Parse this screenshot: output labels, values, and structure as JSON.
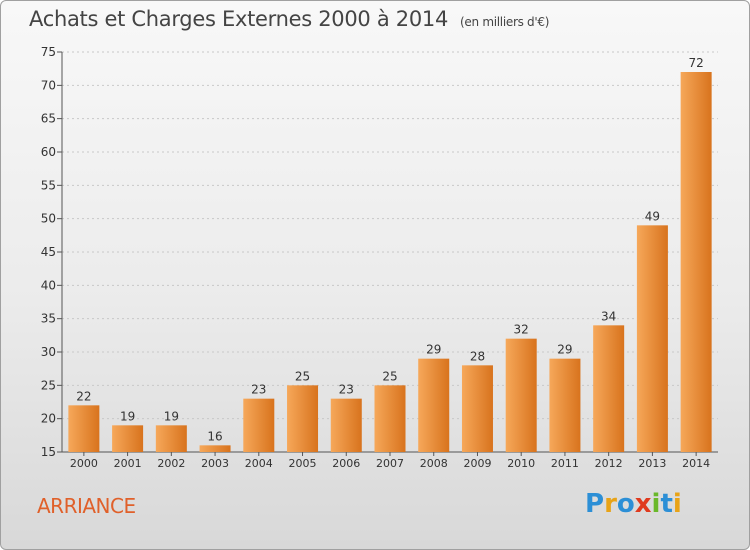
{
  "title": "Achats et Charges Externes 2000 à 2014",
  "subtitle": "(en milliers d'€)",
  "commune": "ARRIANCE",
  "logo": {
    "text": "Proxiti",
    "letters": [
      {
        "char": "P",
        "color": "#2c8fd6"
      },
      {
        "char": "r",
        "color": "#e8a317"
      },
      {
        "char": "o",
        "color": "#2c8fd6"
      },
      {
        "char": "x",
        "color": "#e03a1e"
      },
      {
        "char": "i",
        "color": "#6ab82a"
      },
      {
        "char": "t",
        "color": "#2c8fd6"
      },
      {
        "char": "i",
        "color": "#e8a317"
      }
    ]
  },
  "colors": {
    "bar_light": "#f6a85a",
    "bar_dark": "#d8731d",
    "commune": "#e0602a",
    "grid": "#c8c8c8",
    "axis": "#555555"
  },
  "chart_data": {
    "type": "bar",
    "title": "Achats et Charges Externes 2000 à 2014",
    "subtitle": "(en milliers d'€)",
    "categories": [
      "2000",
      "2001",
      "2002",
      "2003",
      "2004",
      "2005",
      "2006",
      "2007",
      "2008",
      "2009",
      "2010",
      "2011",
      "2012",
      "2013",
      "2014"
    ],
    "values": [
      22,
      19,
      19,
      16,
      23,
      25,
      23,
      25,
      29,
      28,
      32,
      29,
      34,
      49,
      72
    ],
    "ylim": [
      15,
      75
    ],
    "yticks": [
      15,
      20,
      25,
      30,
      35,
      40,
      45,
      50,
      55,
      60,
      65,
      70,
      75
    ],
    "grid": true,
    "data_labels": true
  }
}
